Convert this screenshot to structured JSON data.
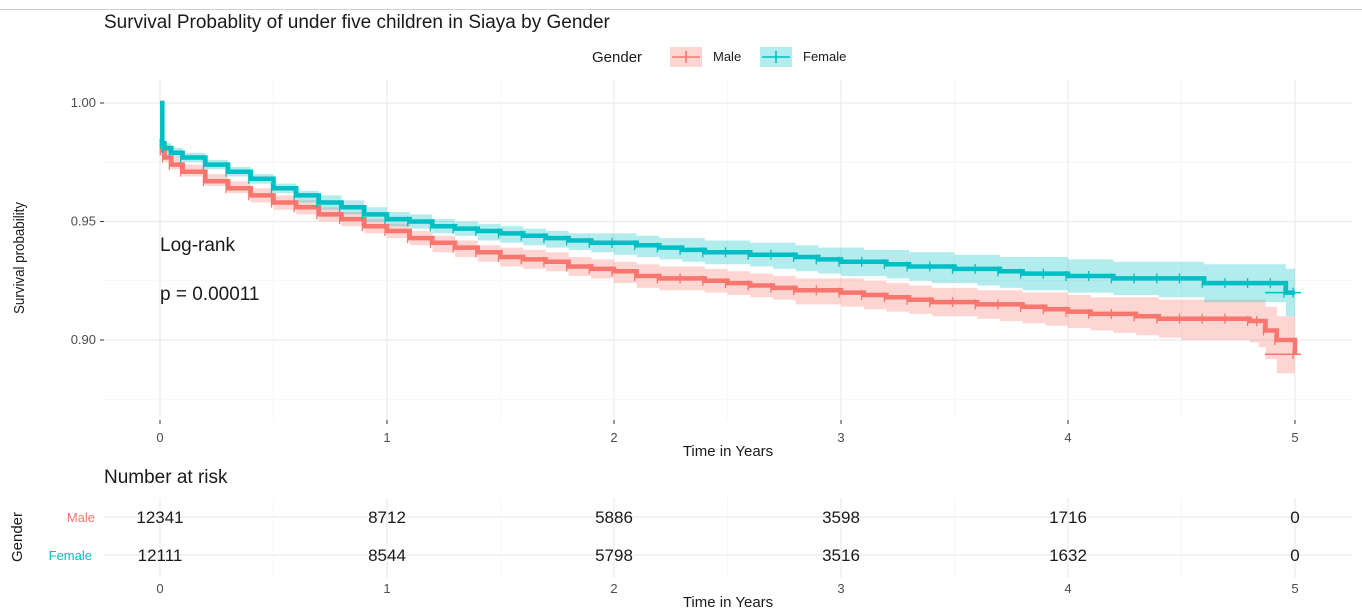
{
  "chart_data": [
    {
      "type": "line",
      "subtype": "kaplan-meier",
      "title": "Survival Probablity of under five children in Siaya by Gender",
      "xlabel": "Time in Years",
      "ylabel": "Survival probability",
      "xlim": [
        -0.25,
        5.25
      ],
      "ylim": [
        0.875,
        1.0
      ],
      "xticks": [
        0,
        1,
        2,
        3,
        4,
        5
      ],
      "yticks": [
        0.9,
        0.95,
        1.0
      ],
      "ytick_labels": [
        "0.90",
        "0.95",
        "1.00"
      ],
      "grid": true,
      "legend": {
        "title": "Gender",
        "placement": "top-center"
      },
      "annotations": [
        "Log-rank",
        "p = 0.00011"
      ],
      "series": [
        {
          "name": "Male",
          "color": "#F8766D",
          "x": [
            0,
            0.01,
            0.02,
            0.05,
            0.1,
            0.2,
            0.3,
            0.4,
            0.5,
            0.6,
            0.7,
            0.8,
            0.9,
            1.0,
            1.1,
            1.2,
            1.3,
            1.4,
            1.5,
            1.6,
            1.7,
            1.8,
            1.9,
            2.0,
            2.1,
            2.2,
            2.3,
            2.4,
            2.5,
            2.6,
            2.7,
            2.8,
            2.9,
            3.0,
            3.1,
            3.2,
            3.3,
            3.4,
            3.5,
            3.6,
            3.7,
            3.8,
            3.9,
            4.0,
            4.1,
            4.2,
            4.3,
            4.4,
            4.5,
            4.6,
            4.7,
            4.8,
            4.84,
            4.87,
            4.92,
            5.0
          ],
          "y": [
            1.0,
            0.98,
            0.977,
            0.974,
            0.971,
            0.967,
            0.964,
            0.961,
            0.958,
            0.956,
            0.953,
            0.951,
            0.948,
            0.946,
            0.943,
            0.941,
            0.939,
            0.937,
            0.935,
            0.934,
            0.933,
            0.931,
            0.93,
            0.929,
            0.927,
            0.926,
            0.926,
            0.925,
            0.924,
            0.923,
            0.922,
            0.921,
            0.921,
            0.92,
            0.919,
            0.918,
            0.917,
            0.916,
            0.916,
            0.915,
            0.915,
            0.914,
            0.913,
            0.912,
            0.911,
            0.911,
            0.91,
            0.909,
            0.909,
            0.909,
            0.909,
            0.908,
            0.908,
            0.904,
            0.9,
            0.894
          ],
          "ci_low": [
            1.0,
            0.977,
            0.975,
            0.972,
            0.969,
            0.965,
            0.962,
            0.958,
            0.955,
            0.953,
            0.95,
            0.948,
            0.945,
            0.943,
            0.94,
            0.937,
            0.935,
            0.933,
            0.931,
            0.93,
            0.929,
            0.927,
            0.926,
            0.924,
            0.922,
            0.921,
            0.921,
            0.92,
            0.919,
            0.918,
            0.917,
            0.915,
            0.915,
            0.914,
            0.913,
            0.912,
            0.911,
            0.91,
            0.91,
            0.909,
            0.908,
            0.907,
            0.906,
            0.905,
            0.904,
            0.903,
            0.902,
            0.901,
            0.9,
            0.9,
            0.9,
            0.899,
            0.897,
            0.892,
            0.886,
            0.876
          ],
          "ci_high": [
            1.0,
            0.983,
            0.98,
            0.977,
            0.974,
            0.97,
            0.967,
            0.964,
            0.961,
            0.959,
            0.956,
            0.954,
            0.951,
            0.949,
            0.946,
            0.944,
            0.942,
            0.94,
            0.939,
            0.938,
            0.937,
            0.935,
            0.934,
            0.933,
            0.932,
            0.931,
            0.931,
            0.93,
            0.929,
            0.928,
            0.927,
            0.926,
            0.926,
            0.926,
            0.925,
            0.924,
            0.923,
            0.922,
            0.922,
            0.921,
            0.921,
            0.92,
            0.92,
            0.919,
            0.918,
            0.918,
            0.918,
            0.917,
            0.917,
            0.917,
            0.917,
            0.917,
            0.917,
            0.914,
            0.91,
            0.908
          ]
        },
        {
          "name": "Female",
          "color": "#00BFC4",
          "x": [
            0,
            0.01,
            0.02,
            0.05,
            0.1,
            0.2,
            0.3,
            0.4,
            0.5,
            0.6,
            0.7,
            0.8,
            0.9,
            1.0,
            1.1,
            1.2,
            1.3,
            1.4,
            1.5,
            1.6,
            1.7,
            1.8,
            1.9,
            2.0,
            2.1,
            2.2,
            2.3,
            2.4,
            2.5,
            2.6,
            2.7,
            2.8,
            2.9,
            3.0,
            3.1,
            3.2,
            3.3,
            3.4,
            3.5,
            3.6,
            3.7,
            3.8,
            3.9,
            4.0,
            4.1,
            4.2,
            4.3,
            4.4,
            4.5,
            4.6,
            4.7,
            4.8,
            4.9,
            4.96,
            5.0
          ],
          "y": [
            1.0,
            0.983,
            0.981,
            0.979,
            0.977,
            0.974,
            0.971,
            0.968,
            0.964,
            0.961,
            0.958,
            0.956,
            0.953,
            0.951,
            0.95,
            0.948,
            0.947,
            0.946,
            0.945,
            0.944,
            0.943,
            0.942,
            0.941,
            0.941,
            0.94,
            0.939,
            0.938,
            0.937,
            0.937,
            0.936,
            0.936,
            0.935,
            0.934,
            0.933,
            0.933,
            0.932,
            0.931,
            0.931,
            0.93,
            0.93,
            0.929,
            0.928,
            0.928,
            0.927,
            0.927,
            0.926,
            0.926,
            0.926,
            0.926,
            0.924,
            0.924,
            0.924,
            0.924,
            0.92,
            0.92
          ],
          "ci_low": [
            1.0,
            0.981,
            0.979,
            0.977,
            0.975,
            0.972,
            0.969,
            0.966,
            0.962,
            0.958,
            0.955,
            0.953,
            0.95,
            0.948,
            0.947,
            0.945,
            0.944,
            0.942,
            0.941,
            0.94,
            0.939,
            0.938,
            0.937,
            0.936,
            0.935,
            0.934,
            0.933,
            0.932,
            0.932,
            0.931,
            0.93,
            0.929,
            0.928,
            0.927,
            0.927,
            0.926,
            0.925,
            0.924,
            0.924,
            0.923,
            0.922,
            0.921,
            0.921,
            0.92,
            0.92,
            0.919,
            0.919,
            0.918,
            0.918,
            0.916,
            0.916,
            0.916,
            0.916,
            0.91,
            0.91
          ],
          "ci_high": [
            1.0,
            0.986,
            0.983,
            0.981,
            0.979,
            0.976,
            0.973,
            0.97,
            0.966,
            0.963,
            0.961,
            0.959,
            0.956,
            0.954,
            0.953,
            0.951,
            0.95,
            0.949,
            0.948,
            0.947,
            0.946,
            0.945,
            0.945,
            0.945,
            0.944,
            0.943,
            0.943,
            0.942,
            0.942,
            0.941,
            0.941,
            0.94,
            0.939,
            0.939,
            0.938,
            0.938,
            0.937,
            0.937,
            0.936,
            0.936,
            0.935,
            0.935,
            0.935,
            0.934,
            0.934,
            0.933,
            0.933,
            0.933,
            0.933,
            0.932,
            0.932,
            0.932,
            0.932,
            0.93,
            0.93
          ]
        }
      ]
    },
    {
      "type": "table",
      "title": "Number at risk",
      "xlabel": "Time in Years",
      "ylabel": "Gender",
      "xticks": [
        0,
        1,
        2,
        3,
        4,
        5
      ],
      "rows": [
        {
          "name": "Male",
          "color": "#F8766D",
          "values": [
            "12341",
            "8712",
            "5886",
            "3598",
            "1716",
            "0"
          ]
        },
        {
          "name": "Female",
          "color": "#00BFC4",
          "values": [
            "12111",
            "8544",
            "5798",
            "3516",
            "1632",
            "0"
          ]
        }
      ]
    }
  ]
}
